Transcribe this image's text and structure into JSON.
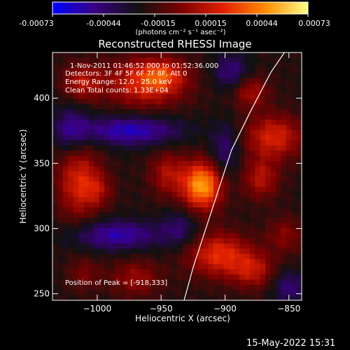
{
  "colorbar": {
    "tick_labels": [
      "-0.00073",
      "-0.00044",
      "-0.00015",
      "0.00015",
      "0.00044",
      "0.00073"
    ],
    "unit_label": "(photons cm⁻² s⁻¹ asec⁻²)",
    "colors": [
      "#0000ff",
      "#3a0082",
      "#111111",
      "#7a0000",
      "#e02000",
      "#ff8c00",
      "#ffff88"
    ]
  },
  "info": {
    "time_range": "1-Nov-2011 01:46:52.000 to 01:52:36.000",
    "detectors": "Detectors: 3F 4F 5F 6F 7F 8F, Att 0",
    "energy": "Energy Range: 12.0 - 25.0 keV",
    "clean": "Clean     Total counts: 1.33E+04",
    "peak": "Position of Peak = [-918,333]"
  },
  "footer": {
    "timestamp": "15-May-2022 15:31"
  },
  "chart_data": {
    "type": "heatmap",
    "title": "Reconstructed RHESSI Image",
    "xlabel": "Heliocentric X (arcsec)",
    "ylabel": "Heliocentric Y (arcsec)",
    "xlim": [
      -1035,
      -840
    ],
    "ylim": [
      245,
      435
    ],
    "x_ticks": [
      -1000,
      -950,
      -900,
      -850
    ],
    "x_tick_labels": [
      "−1000",
      "−950",
      "−900",
      "−850"
    ],
    "y_ticks": [
      250,
      300,
      350,
      400
    ],
    "y_tick_labels": [
      "250",
      "300",
      "350",
      "400"
    ],
    "value_range": [
      -0.00073,
      0.00073
    ],
    "peak": [
      -918,
      333
    ],
    "sources": [
      {
        "x": -918,
        "y": 333,
        "sx": 11,
        "sy": 13,
        "amp": 0.00073
      },
      {
        "x": -945,
        "y": 342,
        "sx": 10,
        "sy": 12,
        "amp": 0.0003
      },
      {
        "x": -962,
        "y": 412,
        "sx": 22,
        "sy": 13,
        "amp": 0.00045
      },
      {
        "x": -948,
        "y": 418,
        "sx": 12,
        "sy": 8,
        "amp": 0.00025
      },
      {
        "x": -1012,
        "y": 412,
        "sx": 11,
        "sy": 10,
        "amp": 0.00032
      },
      {
        "x": -1015,
        "y": 338,
        "sx": 12,
        "sy": 22,
        "amp": 0.0004
      },
      {
        "x": -1000,
        "y": 330,
        "sx": 9,
        "sy": 9,
        "amp": 0.00022
      },
      {
        "x": -862,
        "y": 370,
        "sx": 16,
        "sy": 12,
        "amp": 0.00042
      },
      {
        "x": -880,
        "y": 405,
        "sx": 10,
        "sy": 9,
        "amp": 0.0003
      },
      {
        "x": -872,
        "y": 338,
        "sx": 10,
        "sy": 11,
        "amp": 0.00032
      },
      {
        "x": -853,
        "y": 295,
        "sx": 10,
        "sy": 10,
        "amp": 0.00022
      },
      {
        "x": -905,
        "y": 280,
        "sx": 17,
        "sy": 12,
        "amp": 0.00046
      },
      {
        "x": -878,
        "y": 268,
        "sx": 12,
        "sy": 10,
        "amp": 0.00032
      },
      {
        "x": -970,
        "y": 262,
        "sx": 14,
        "sy": 10,
        "amp": 0.00026
      },
      {
        "x": -1010,
        "y": 265,
        "sx": 9,
        "sy": 9,
        "amp": 0.00018
      },
      {
        "x": -975,
        "y": 375,
        "sx": 28,
        "sy": 8,
        "amp": -0.0004
      },
      {
        "x": -985,
        "y": 295,
        "sx": 25,
        "sy": 8,
        "amp": -0.00036
      },
      {
        "x": -1020,
        "y": 375,
        "sx": 10,
        "sy": 14,
        "amp": -0.0003
      },
      {
        "x": -895,
        "y": 420,
        "sx": 10,
        "sy": 10,
        "amp": -0.00028
      },
      {
        "x": -900,
        "y": 360,
        "sx": 8,
        "sy": 14,
        "amp": -0.00025
      },
      {
        "x": -935,
        "y": 300,
        "sx": 10,
        "sy": 10,
        "amp": -0.00022
      },
      {
        "x": -850,
        "y": 255,
        "sx": 9,
        "sy": 9,
        "amp": -0.00026
      }
    ],
    "limb": [
      [
        -932,
        245
      ],
      [
        -925,
        270
      ],
      [
        -915,
        300
      ],
      [
        -905,
        330
      ],
      [
        -895,
        360
      ],
      [
        -880,
        390
      ],
      [
        -864,
        420
      ],
      [
        -850,
        440
      ]
    ]
  }
}
